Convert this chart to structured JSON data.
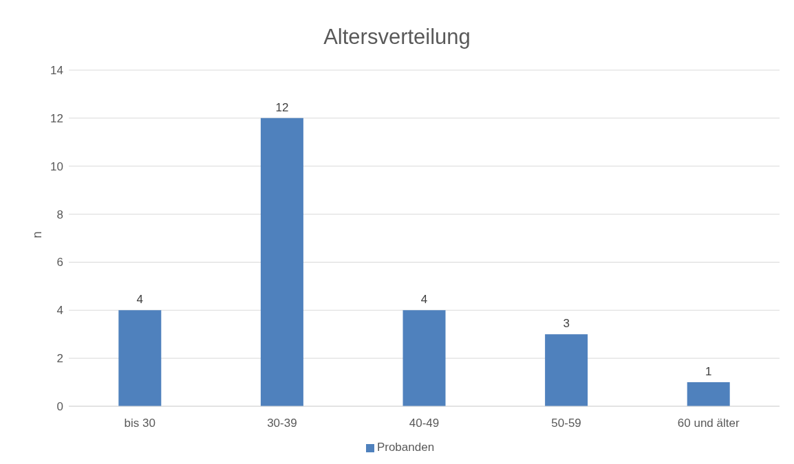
{
  "chart_data": {
    "type": "bar",
    "title": "Altersverteilung",
    "ylabel": "n",
    "categories": [
      "bis 30",
      "30-39",
      "40-49",
      "50-59",
      "60 und älter"
    ],
    "series": [
      {
        "name": "Probanden",
        "color": "#4f81bd",
        "values": [
          4,
          12,
          4,
          3,
          1
        ]
      }
    ],
    "ylim": [
      0,
      14
    ],
    "yticks": [
      0,
      2,
      4,
      6,
      8,
      10,
      12,
      14
    ],
    "grid": "y",
    "legend": "bottom",
    "data_labels": true
  }
}
